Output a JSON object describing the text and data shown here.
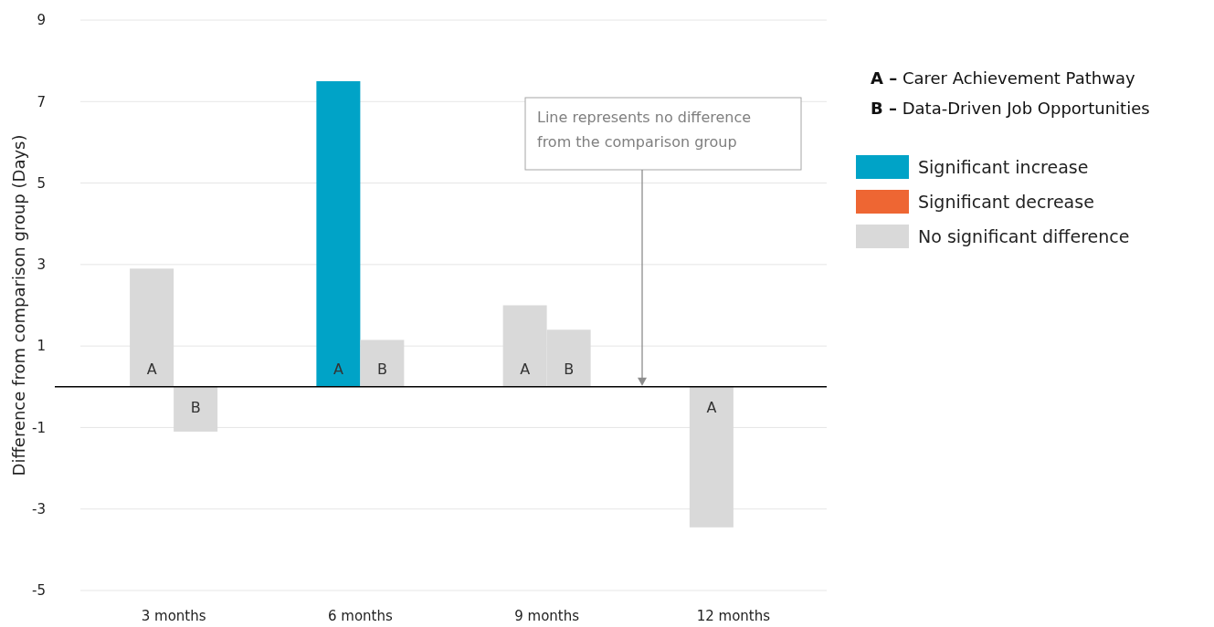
{
  "chart_data": {
    "type": "bar",
    "ylabel": "Difference from comparison group (Days)",
    "categories": [
      "3 months",
      "6 months",
      "9 months",
      "12 months"
    ],
    "series": [
      {
        "name": "A",
        "values": [
          2.9,
          7.5,
          2.0,
          -3.45
        ],
        "colors": [
          "#d9d9d9",
          "#00a3c7",
          "#d9d9d9",
          "#d9d9d9"
        ]
      },
      {
        "name": "B",
        "values": [
          -1.1,
          1.15,
          1.4,
          null
        ],
        "colors": [
          "#d9d9d9",
          "#d9d9d9",
          "#d9d9d9",
          null
        ]
      },
      {
        "name": "Significant increase",
        "color": "#00a3c7",
        "values": [
          null,
          null,
          null,
          null
        ]
      },
      {
        "name": "Significant decrease",
        "color": "#ee6633",
        "values": [
          null,
          null,
          null,
          null
        ]
      },
      {
        "name": "No significant difference",
        "color": "#d9d9d9",
        "values": [
          null,
          null,
          null,
          null
        ]
      }
    ],
    "ylim": [
      -5,
      9
    ],
    "yticks": [
      -5,
      -3,
      -1,
      1,
      3,
      5,
      7,
      9
    ],
    "grid": "y",
    "legend": "right",
    "ref_lines": [
      {
        "axis": "y",
        "value": 0,
        "color": "#000000"
      }
    ],
    "annotations": [
      "A – Carer Achievement Pathway",
      "B – Data-Driven Job Opportunities",
      "Line represents no difference from the comparison group"
    ]
  }
}
